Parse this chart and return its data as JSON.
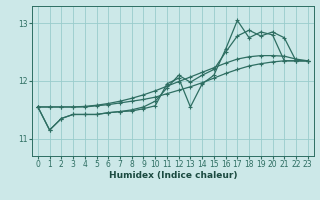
{
  "xlabel": "Humidex (Indice chaleur)",
  "xlim": [
    -0.5,
    23.5
  ],
  "ylim": [
    10.7,
    13.3
  ],
  "yticks": [
    11,
    12,
    13
  ],
  "xticks": [
    0,
    1,
    2,
    3,
    4,
    5,
    6,
    7,
    8,
    9,
    10,
    11,
    12,
    13,
    14,
    15,
    16,
    17,
    18,
    19,
    20,
    21,
    22,
    23
  ],
  "bg_color": "#cce8e8",
  "grid_color": "#99cccc",
  "line_color": "#2e6e62",
  "lines": [
    {
      "x": [
        0,
        1,
        2,
        3,
        4,
        5,
        6,
        7,
        8,
        9,
        10,
        11,
        12,
        13,
        14,
        15,
        16,
        17,
        18,
        19,
        20,
        21,
        22,
        23
      ],
      "y": [
        11.55,
        11.55,
        11.55,
        11.55,
        11.55,
        11.57,
        11.59,
        11.62,
        11.65,
        11.68,
        11.72,
        11.78,
        11.84,
        11.9,
        11.97,
        12.05,
        12.13,
        12.2,
        12.26,
        12.3,
        12.33,
        12.35,
        12.35,
        12.35
      ]
    },
    {
      "x": [
        0,
        1,
        2,
        3,
        4,
        5,
        6,
        7,
        8,
        9,
        10,
        11,
        12,
        13,
        14,
        15,
        16,
        17,
        18,
        19,
        20,
        21,
        22,
        23
      ],
      "y": [
        11.55,
        11.55,
        11.55,
        11.55,
        11.56,
        11.58,
        11.61,
        11.65,
        11.7,
        11.76,
        11.83,
        11.91,
        11.99,
        12.07,
        12.15,
        12.23,
        12.31,
        12.38,
        12.42,
        12.44,
        12.44,
        12.43,
        12.38,
        12.35
      ]
    },
    {
      "x": [
        0,
        1,
        2,
        3,
        4,
        5,
        6,
        7,
        8,
        9,
        10,
        11,
        12,
        13,
        14,
        15,
        16,
        17,
        18,
        19,
        20,
        21,
        22,
        23
      ],
      "y": [
        11.55,
        11.15,
        11.35,
        11.42,
        11.42,
        11.42,
        11.45,
        11.47,
        11.48,
        11.52,
        11.57,
        11.95,
        12.05,
        11.55,
        11.95,
        12.1,
        12.55,
        13.05,
        12.75,
        12.85,
        12.8,
        12.35,
        12.35,
        12.35
      ]
    },
    {
      "x": [
        0,
        1,
        2,
        3,
        4,
        5,
        6,
        7,
        8,
        9,
        10,
        11,
        12,
        13,
        14,
        15,
        16,
        17,
        18,
        19,
        20,
        21,
        22,
        23
      ],
      "y": [
        11.55,
        11.15,
        11.35,
        11.42,
        11.42,
        11.42,
        11.45,
        11.47,
        11.5,
        11.55,
        11.65,
        11.88,
        12.1,
        11.98,
        12.1,
        12.2,
        12.5,
        12.78,
        12.88,
        12.78,
        12.85,
        12.75,
        12.35,
        12.35
      ]
    }
  ]
}
